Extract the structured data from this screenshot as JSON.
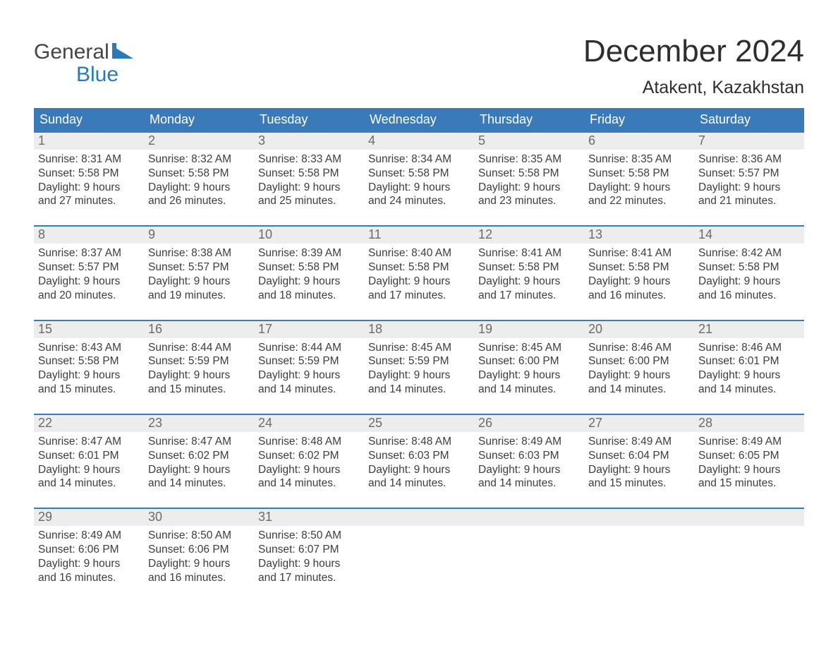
{
  "brand": {
    "top": "General",
    "bottom": "Blue",
    "flag_color": "#2a7ab9"
  },
  "title": "December 2024",
  "location": "Atakent, Kazakhstan",
  "colors": {
    "header_bg": "#3a7ab8",
    "header_text": "#ffffff",
    "week_border": "#3a7ab8",
    "daynum_bg": "#ededed",
    "daynum_text": "#6b6b6b",
    "body_text": "#3d3d3d",
    "page_bg": "#ffffff"
  },
  "typography": {
    "title_fontsize": 44,
    "location_fontsize": 25,
    "dayhead_fontsize": 18,
    "daynum_fontsize": 18,
    "cell_fontsize": 15.5,
    "font_family": "Arial"
  },
  "day_headers": [
    "Sunday",
    "Monday",
    "Tuesday",
    "Wednesday",
    "Thursday",
    "Friday",
    "Saturday"
  ],
  "weeks": [
    [
      {
        "n": "1",
        "sunrise": "Sunrise: 8:31 AM",
        "sunset": "Sunset: 5:58 PM",
        "day1": "Daylight: 9 hours",
        "day2": "and 27 minutes."
      },
      {
        "n": "2",
        "sunrise": "Sunrise: 8:32 AM",
        "sunset": "Sunset: 5:58 PM",
        "day1": "Daylight: 9 hours",
        "day2": "and 26 minutes."
      },
      {
        "n": "3",
        "sunrise": "Sunrise: 8:33 AM",
        "sunset": "Sunset: 5:58 PM",
        "day1": "Daylight: 9 hours",
        "day2": "and 25 minutes."
      },
      {
        "n": "4",
        "sunrise": "Sunrise: 8:34 AM",
        "sunset": "Sunset: 5:58 PM",
        "day1": "Daylight: 9 hours",
        "day2": "and 24 minutes."
      },
      {
        "n": "5",
        "sunrise": "Sunrise: 8:35 AM",
        "sunset": "Sunset: 5:58 PM",
        "day1": "Daylight: 9 hours",
        "day2": "and 23 minutes."
      },
      {
        "n": "6",
        "sunrise": "Sunrise: 8:35 AM",
        "sunset": "Sunset: 5:58 PM",
        "day1": "Daylight: 9 hours",
        "day2": "and 22 minutes."
      },
      {
        "n": "7",
        "sunrise": "Sunrise: 8:36 AM",
        "sunset": "Sunset: 5:57 PM",
        "day1": "Daylight: 9 hours",
        "day2": "and 21 minutes."
      }
    ],
    [
      {
        "n": "8",
        "sunrise": "Sunrise: 8:37 AM",
        "sunset": "Sunset: 5:57 PM",
        "day1": "Daylight: 9 hours",
        "day2": "and 20 minutes."
      },
      {
        "n": "9",
        "sunrise": "Sunrise: 8:38 AM",
        "sunset": "Sunset: 5:57 PM",
        "day1": "Daylight: 9 hours",
        "day2": "and 19 minutes."
      },
      {
        "n": "10",
        "sunrise": "Sunrise: 8:39 AM",
        "sunset": "Sunset: 5:58 PM",
        "day1": "Daylight: 9 hours",
        "day2": "and 18 minutes."
      },
      {
        "n": "11",
        "sunrise": "Sunrise: 8:40 AM",
        "sunset": "Sunset: 5:58 PM",
        "day1": "Daylight: 9 hours",
        "day2": "and 17 minutes."
      },
      {
        "n": "12",
        "sunrise": "Sunrise: 8:41 AM",
        "sunset": "Sunset: 5:58 PM",
        "day1": "Daylight: 9 hours",
        "day2": "and 17 minutes."
      },
      {
        "n": "13",
        "sunrise": "Sunrise: 8:41 AM",
        "sunset": "Sunset: 5:58 PM",
        "day1": "Daylight: 9 hours",
        "day2": "and 16 minutes."
      },
      {
        "n": "14",
        "sunrise": "Sunrise: 8:42 AM",
        "sunset": "Sunset: 5:58 PM",
        "day1": "Daylight: 9 hours",
        "day2": "and 16 minutes."
      }
    ],
    [
      {
        "n": "15",
        "sunrise": "Sunrise: 8:43 AM",
        "sunset": "Sunset: 5:58 PM",
        "day1": "Daylight: 9 hours",
        "day2": "and 15 minutes."
      },
      {
        "n": "16",
        "sunrise": "Sunrise: 8:44 AM",
        "sunset": "Sunset: 5:59 PM",
        "day1": "Daylight: 9 hours",
        "day2": "and 15 minutes."
      },
      {
        "n": "17",
        "sunrise": "Sunrise: 8:44 AM",
        "sunset": "Sunset: 5:59 PM",
        "day1": "Daylight: 9 hours",
        "day2": "and 14 minutes."
      },
      {
        "n": "18",
        "sunrise": "Sunrise: 8:45 AM",
        "sunset": "Sunset: 5:59 PM",
        "day1": "Daylight: 9 hours",
        "day2": "and 14 minutes."
      },
      {
        "n": "19",
        "sunrise": "Sunrise: 8:45 AM",
        "sunset": "Sunset: 6:00 PM",
        "day1": "Daylight: 9 hours",
        "day2": "and 14 minutes."
      },
      {
        "n": "20",
        "sunrise": "Sunrise: 8:46 AM",
        "sunset": "Sunset: 6:00 PM",
        "day1": "Daylight: 9 hours",
        "day2": "and 14 minutes."
      },
      {
        "n": "21",
        "sunrise": "Sunrise: 8:46 AM",
        "sunset": "Sunset: 6:01 PM",
        "day1": "Daylight: 9 hours",
        "day2": "and 14 minutes."
      }
    ],
    [
      {
        "n": "22",
        "sunrise": "Sunrise: 8:47 AM",
        "sunset": "Sunset: 6:01 PM",
        "day1": "Daylight: 9 hours",
        "day2": "and 14 minutes."
      },
      {
        "n": "23",
        "sunrise": "Sunrise: 8:47 AM",
        "sunset": "Sunset: 6:02 PM",
        "day1": "Daylight: 9 hours",
        "day2": "and 14 minutes."
      },
      {
        "n": "24",
        "sunrise": "Sunrise: 8:48 AM",
        "sunset": "Sunset: 6:02 PM",
        "day1": "Daylight: 9 hours",
        "day2": "and 14 minutes."
      },
      {
        "n": "25",
        "sunrise": "Sunrise: 8:48 AM",
        "sunset": "Sunset: 6:03 PM",
        "day1": "Daylight: 9 hours",
        "day2": "and 14 minutes."
      },
      {
        "n": "26",
        "sunrise": "Sunrise: 8:49 AM",
        "sunset": "Sunset: 6:03 PM",
        "day1": "Daylight: 9 hours",
        "day2": "and 14 minutes."
      },
      {
        "n": "27",
        "sunrise": "Sunrise: 8:49 AM",
        "sunset": "Sunset: 6:04 PM",
        "day1": "Daylight: 9 hours",
        "day2": "and 15 minutes."
      },
      {
        "n": "28",
        "sunrise": "Sunrise: 8:49 AM",
        "sunset": "Sunset: 6:05 PM",
        "day1": "Daylight: 9 hours",
        "day2": "and 15 minutes."
      }
    ],
    [
      {
        "n": "29",
        "sunrise": "Sunrise: 8:49 AM",
        "sunset": "Sunset: 6:06 PM",
        "day1": "Daylight: 9 hours",
        "day2": "and 16 minutes."
      },
      {
        "n": "30",
        "sunrise": "Sunrise: 8:50 AM",
        "sunset": "Sunset: 6:06 PM",
        "day1": "Daylight: 9 hours",
        "day2": "and 16 minutes."
      },
      {
        "n": "31",
        "sunrise": "Sunrise: 8:50 AM",
        "sunset": "Sunset: 6:07 PM",
        "day1": "Daylight: 9 hours",
        "day2": "and 17 minutes."
      },
      {
        "empty": true
      },
      {
        "empty": true
      },
      {
        "empty": true
      },
      {
        "empty": true
      }
    ]
  ]
}
